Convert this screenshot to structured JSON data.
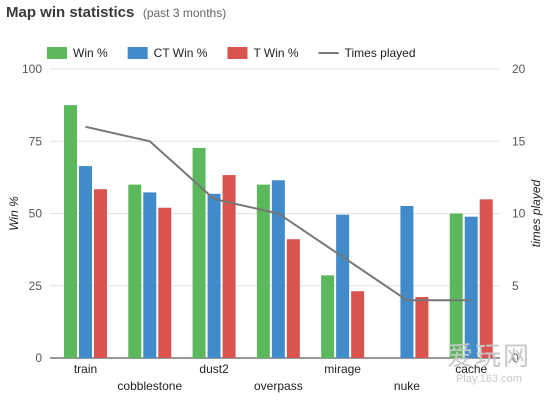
{
  "title": {
    "main": "Map win statistics",
    "sub": "(past 3 months)"
  },
  "watermark": {
    "main": "爱玩网",
    "sub": "Play.163.com"
  },
  "chart_data": {
    "type": "bar",
    "categories": [
      "train",
      "cobblestone",
      "dust2",
      "overpass",
      "mirage",
      "nuke",
      "cache"
    ],
    "series": [
      {
        "name": "Win %",
        "type": "bar",
        "axis": "left",
        "color": "#5cb85c",
        "values": [
          87.5,
          60,
          72.7,
          60,
          28.6,
          0,
          50
        ]
      },
      {
        "name": "CT Win %",
        "type": "bar",
        "axis": "left",
        "color": "#428bca",
        "values": [
          66.4,
          57.3,
          56.8,
          61.5,
          49.6,
          52.6,
          48.9
        ]
      },
      {
        "name": "T Win %",
        "type": "bar",
        "axis": "left",
        "color": "#d9534f",
        "values": [
          58.4,
          52,
          63.3,
          41.1,
          23.1,
          21.1,
          54.9
        ]
      },
      {
        "name": "Times played",
        "type": "line",
        "axis": "right",
        "color": "#777777",
        "values": [
          16,
          15,
          11,
          10,
          7,
          4,
          4
        ]
      }
    ],
    "ylabel": "Win %",
    "y2label": "times played",
    "ylim": [
      0,
      100
    ],
    "y2lim": [
      0,
      20
    ],
    "yticks": [
      0,
      25,
      50,
      75,
      100
    ],
    "y2ticks": [
      0,
      5,
      10,
      15,
      20
    ],
    "grid": true,
    "legend": "top"
  }
}
